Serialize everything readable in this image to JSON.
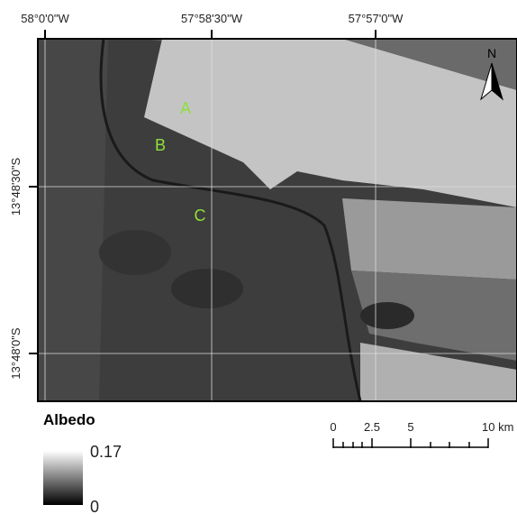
{
  "map": {
    "lon_labels": [
      "58°0'0\"W",
      "57°58'30\"W",
      "57°57'0\"W"
    ],
    "lat_labels": [
      "13°48'30\"S",
      "13°48'0\"S"
    ],
    "points": [
      "A",
      "B",
      "C"
    ],
    "north": "N"
  },
  "legend": {
    "title": "Albedo",
    "max": "0.17",
    "min": "0"
  },
  "scale_bar": {
    "labels": [
      "0",
      "2.5",
      "5",
      "10 km"
    ]
  }
}
